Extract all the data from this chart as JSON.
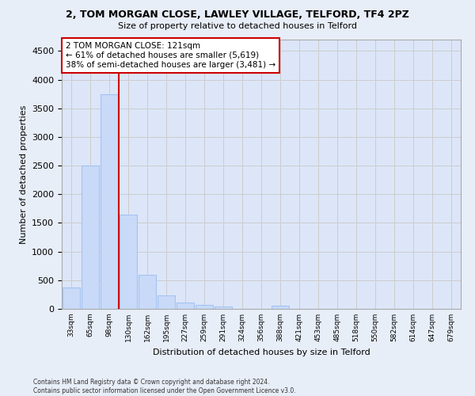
{
  "title_line1": "2, TOM MORGAN CLOSE, LAWLEY VILLAGE, TELFORD, TF4 2PZ",
  "title_line2": "Size of property relative to detached houses in Telford",
  "xlabel": "Distribution of detached houses by size in Telford",
  "ylabel": "Number of detached properties",
  "footnote": "Contains HM Land Registry data © Crown copyright and database right 2024.\nContains public sector information licensed under the Open Government Licence v3.0.",
  "bar_labels": [
    "33sqm",
    "65sqm",
    "98sqm",
    "130sqm",
    "162sqm",
    "195sqm",
    "227sqm",
    "259sqm",
    "291sqm",
    "324sqm",
    "356sqm",
    "388sqm",
    "421sqm",
    "453sqm",
    "485sqm",
    "518sqm",
    "550sqm",
    "582sqm",
    "614sqm",
    "647sqm",
    "679sqm"
  ],
  "bar_values": [
    370,
    2500,
    3750,
    1640,
    590,
    230,
    105,
    65,
    40,
    0,
    0,
    55,
    0,
    0,
    0,
    0,
    0,
    0,
    0,
    0,
    0
  ],
  "bar_color": "#c9daf8",
  "bar_edge_color": "#a4c2f4",
  "grid_color": "#cccccc",
  "vline_pos": 2.5,
  "vline_color": "#cc0000",
  "annotation_text": "2 TOM MORGAN CLOSE: 121sqm\n← 61% of detached houses are smaller (5,619)\n38% of semi-detached houses are larger (3,481) →",
  "annotation_box_color": "#cc0000",
  "ylim": [
    0,
    4700
  ],
  "yticks": [
    0,
    500,
    1000,
    1500,
    2000,
    2500,
    3000,
    3500,
    4000,
    4500
  ],
  "bg_color": "#e8eef8",
  "plot_bg_color": "#dce6f8"
}
